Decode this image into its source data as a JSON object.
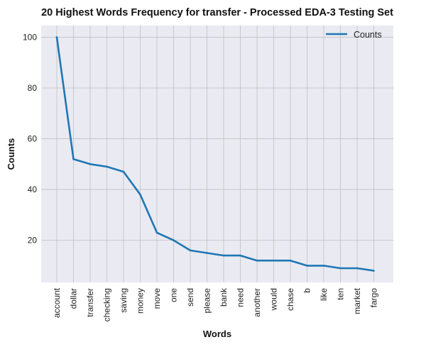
{
  "chart_data": {
    "type": "line",
    "title": "20 Highest Words Frequency for transfer - Processed EDA-3 Testing Set",
    "xlabel": "Words",
    "ylabel": "Counts",
    "categories": [
      "account",
      "dollar",
      "transfer",
      "checking",
      "saving",
      "money",
      "move",
      "one",
      "send",
      "please",
      "bank",
      "need",
      "another",
      "would",
      "chase",
      "b",
      "like",
      "ten",
      "market",
      "fargo"
    ],
    "series": [
      {
        "name": "Counts",
        "values": [
          100,
          52,
          50,
          49,
          47,
          38,
          23,
          20,
          16,
          15,
          14,
          14,
          12,
          12,
          12,
          10,
          10,
          9,
          9,
          8
        ]
      }
    ],
    "yticks": [
      20,
      40,
      60,
      80,
      100
    ],
    "ylim": [
      3.4,
      104.6
    ],
    "grid": true,
    "legend_position": "top-right",
    "colors": {
      "line": "#1f77b4",
      "plot_background": "#eaeaf2",
      "grid": "#c0c0c0"
    }
  }
}
